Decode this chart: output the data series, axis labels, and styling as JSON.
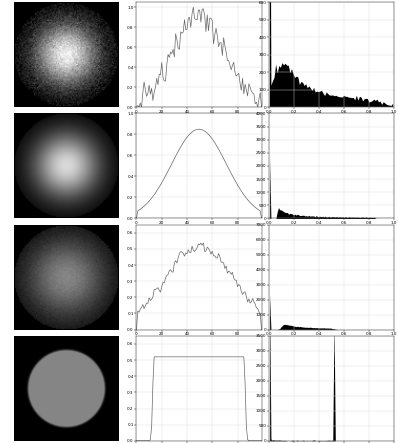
{
  "figsize": [
    3.98,
    4.43
  ],
  "dpi": 100,
  "background": "#ffffff",
  "profile_color": "#666666",
  "hist_color": "#000000",
  "grid_color": "#dddddd",
  "linewidth": 0.5,
  "img_size": 100
}
